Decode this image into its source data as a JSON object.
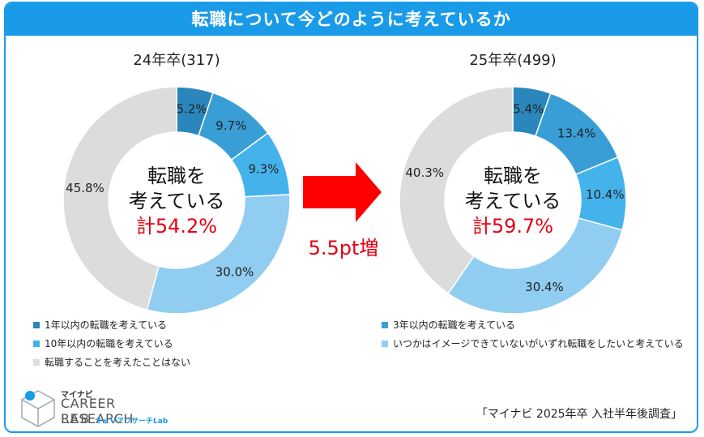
{
  "header": {
    "title": "転職について今どのように考えているか"
  },
  "chart_data": {
    "type": "pie",
    "title": "転職について今どのように考えているか",
    "charts": [
      {
        "title": "24年卒(317)",
        "center": {
          "line1": "転職を",
          "line2": "考えている",
          "total": "計54.2%"
        },
        "slices": [
          {
            "name": "1年以内の転職を考えている",
            "value": 5.2,
            "label": "5.2%",
            "color": "#2a86bb"
          },
          {
            "name": "3年以内の転職を考えている",
            "value": 9.7,
            "label": "9.7%",
            "color": "#3a9ed6"
          },
          {
            "name": "10年以内の転職を考えている",
            "value": 9.3,
            "label": "9.3%",
            "color": "#45b3eb"
          },
          {
            "name": "いつかはイメージできていないがいずれ転職をしたいと考えている",
            "value": 30.0,
            "label": "30.0%",
            "color": "#90cdf0"
          },
          {
            "name": "転職することを考えたことはない",
            "value": 45.8,
            "label": "45.8%",
            "color": "#dcdcdc"
          }
        ]
      },
      {
        "title": "25年卒(499)",
        "center": {
          "line1": "転職を",
          "line2": "考えている",
          "total": "計59.7%"
        },
        "slices": [
          {
            "name": "1年以内の転職を考えている",
            "value": 5.4,
            "label": "5.4%",
            "color": "#2a86bb"
          },
          {
            "name": "3年以内の転職を考えている",
            "value": 13.4,
            "label": "13.4%",
            "color": "#3a9ed6"
          },
          {
            "name": "10年以内の転職を考えている",
            "value": 10.4,
            "label": "10.4%",
            "color": "#45b3eb"
          },
          {
            "name": "いつかはイメージできていないがいずれ転職をしたいと考えている",
            "value": 30.4,
            "label": "30.4%",
            "color": "#90cdf0"
          },
          {
            "name": "転職することを考えたことはない",
            "value": 40.3,
            "label": "40.3%",
            "color": "#dcdcdc"
          }
        ]
      }
    ],
    "annotation": "5.5pt増"
  },
  "legend": {
    "left": [
      {
        "label": "1年以内の転職を考えている",
        "color": "#2a86bb"
      },
      {
        "label": "10年以内の転職を考えている",
        "color": "#45b3eb"
      },
      {
        "label": "転職することを考えたことはない",
        "color": "#dcdcdc"
      }
    ],
    "right": [
      {
        "label": "3年以内の転職を考えている",
        "color": "#3a9ed6"
      },
      {
        "label": "いつかはイメージできていないがいずれ転職をしたいと考えている",
        "color": "#90cdf0"
      }
    ]
  },
  "logo": {
    "small": "マイナビ",
    "line1": "CAREER RESEARCH",
    "line2": "LAB",
    "sub": "キャリアリサーチLab"
  },
  "source": "「マイナビ 2025年卒 入社半年後調査」",
  "colors": {
    "accent": "#1a9be8",
    "highlight": "#e60012"
  }
}
